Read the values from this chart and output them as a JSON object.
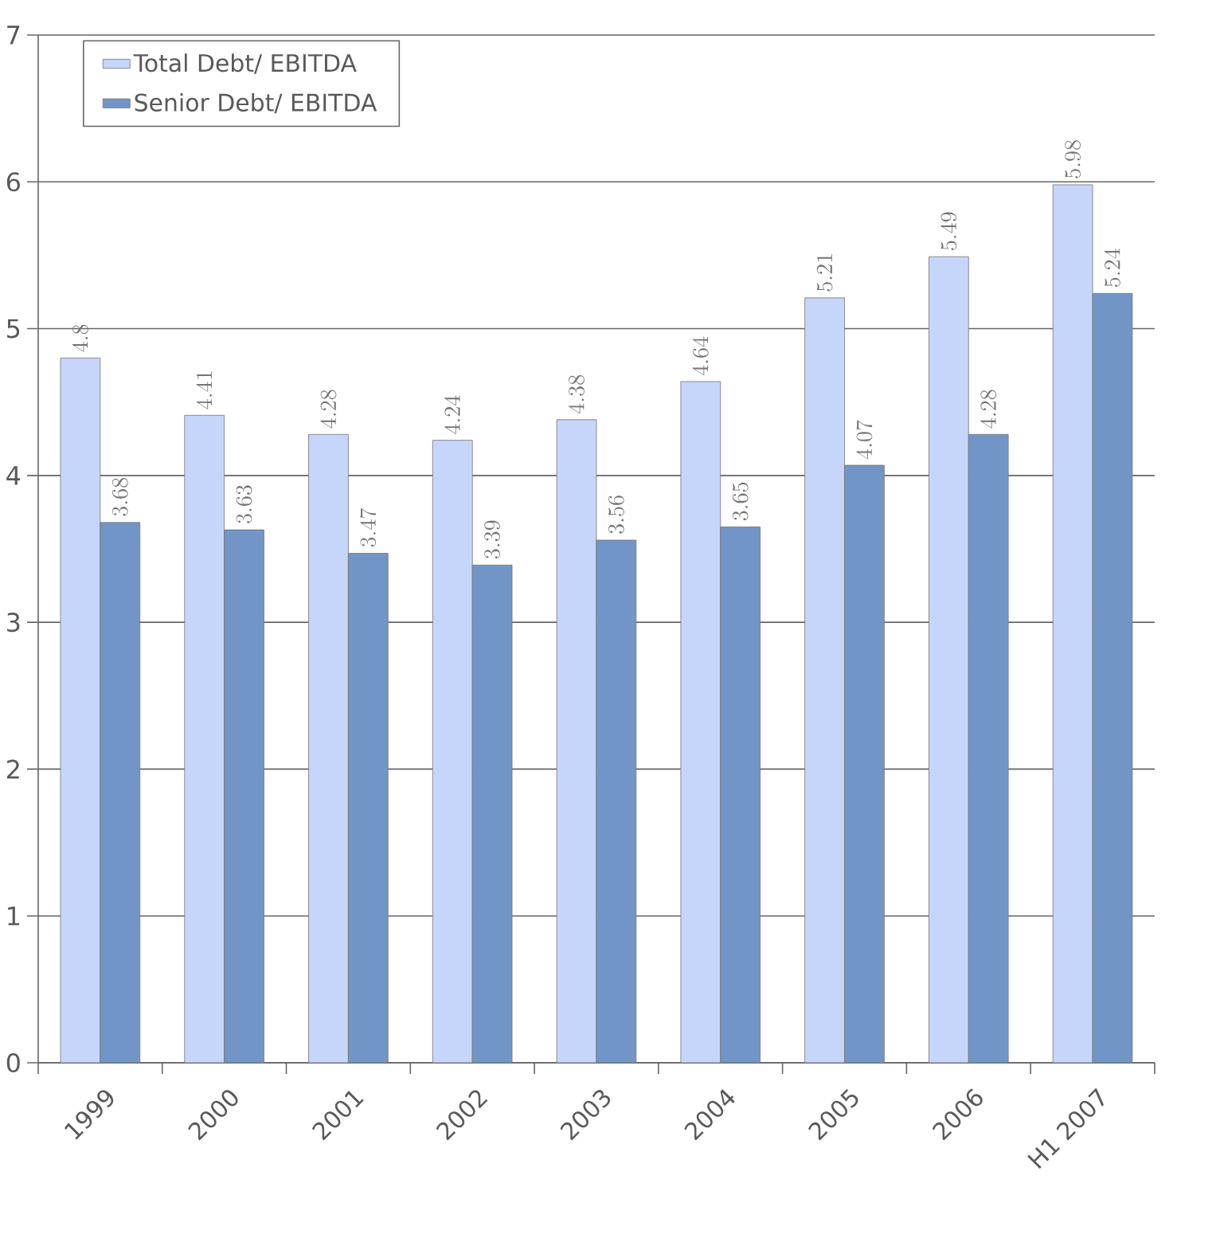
{
  "chart_data": {
    "type": "bar",
    "categories": [
      "1999",
      "2000",
      "2001",
      "2002",
      "2003",
      "2004",
      "2005",
      "2006",
      "H1 2007"
    ],
    "series": [
      {
        "name": "Total Debt/ EBITDA",
        "color": "#c6d6fb",
        "values": [
          4.8,
          4.41,
          4.28,
          4.24,
          4.38,
          4.64,
          5.21,
          5.49,
          5.98
        ]
      },
      {
        "name": "Senior Debt/ EBITDA",
        "color": "#7295c8",
        "values": [
          3.68,
          3.63,
          3.47,
          3.39,
          3.56,
          3.65,
          4.07,
          4.28,
          5.24
        ]
      }
    ],
    "ylim": [
      0,
      7
    ],
    "yticks": [
      0,
      1,
      2,
      3,
      4,
      5,
      6,
      7
    ],
    "grid": "y",
    "legend": "top left",
    "data_labels": true
  }
}
